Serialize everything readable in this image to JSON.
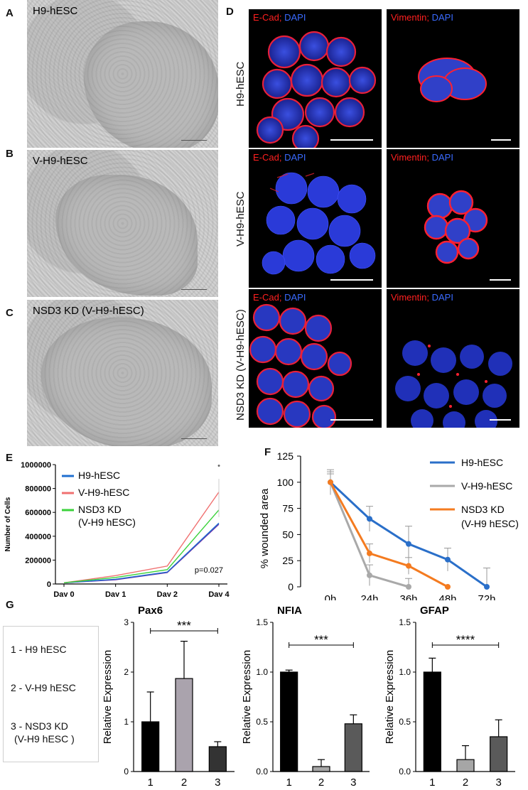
{
  "panels": {
    "A": {
      "letter": "A",
      "label": "H9-hESC"
    },
    "B": {
      "letter": "B",
      "label": "V-H9-hESC"
    },
    "C": {
      "letter": "C",
      "label": "NSD3 KD (V-H9-hESC)"
    },
    "D": {
      "letter": "D",
      "rows": [
        "H9-hESC",
        "V-H9-hESC",
        "NSD3 KD (V-H9-hESC)"
      ],
      "stain1_red": "E-Cad;",
      "stain2_red": "Vimentin;",
      "stain_blue": "DAPI"
    },
    "E": {
      "letter": "E"
    },
    "F": {
      "letter": "F"
    },
    "G": {
      "letter": "G",
      "legend": [
        "1 - H9 hESC",
        "2 - V-H9 hESC",
        "3 - NSD3 KD",
        "(V-H9 hESC )"
      ]
    }
  },
  "chart_data": [
    {
      "id": "E",
      "type": "line",
      "ylabel": "Number of Cells",
      "categories": [
        "Day 0",
        "Day 1",
        "Day 2",
        "Day 4"
      ],
      "yticks": [
        "0",
        "200000",
        "400000",
        "600000",
        "800000",
        "1000000"
      ],
      "ylim": [
        0,
        1000000
      ],
      "annotation": "p=0.027",
      "outlier_marker": "•",
      "series": [
        {
          "name": "H9-hESC",
          "color": "#1f6fd0",
          "values": [
            10000,
            40000,
            100000,
            510000
          ]
        },
        {
          "name": "V-H9-hESC",
          "color": "#f07070",
          "values": [
            10000,
            70000,
            150000,
            770000
          ]
        },
        {
          "name": "NSD3 KD",
          "name2": "(V-H9 hESC)",
          "color": "#3bd23b",
          "values": [
            10000,
            55000,
            120000,
            620000
          ]
        }
      ],
      "extra_series_color": "#6a2ca8",
      "extra_series_values": [
        10000,
        35000,
        95000,
        500000
      ],
      "legend_colors": [
        "#1f6fd0",
        "#f07070",
        "#3bd23b"
      ]
    },
    {
      "id": "F",
      "type": "line",
      "ylabel": "% wounded area",
      "categories": [
        "0h",
        "24h",
        "36h",
        "48h",
        "72h"
      ],
      "yticks": [
        "0",
        "25",
        "50",
        "75",
        "100",
        "125"
      ],
      "ylim": [
        0,
        125
      ],
      "series": [
        {
          "name": "H9-hESC",
          "color": "#2a6fc9",
          "x": [
            "0h",
            "24h",
            "36h",
            "48h",
            "72h"
          ],
          "values": [
            100,
            65,
            41,
            26,
            0
          ],
          "err": [
            12,
            12,
            17,
            11,
            18
          ]
        },
        {
          "name": "V-H9-hESC",
          "color": "#a9a9a9",
          "x": [
            "0h",
            "24h",
            "36h"
          ],
          "values": [
            100,
            11,
            0
          ],
          "err": [
            8,
            10,
            8
          ]
        },
        {
          "name": "NSD3 KD",
          "name2": "(V-H9 hESC)",
          "color": "#f47b20",
          "x": [
            "0h",
            "24h",
            "36h",
            "48h"
          ],
          "values": [
            100,
            32,
            20,
            0
          ],
          "err": [
            10,
            9,
            8,
            0
          ]
        }
      ]
    },
    {
      "id": "G1",
      "type": "bar",
      "title": "Pax6",
      "ylabel": "Relative Expression",
      "categories": [
        "1",
        "2",
        "3"
      ],
      "values": [
        1.0,
        1.87,
        0.5
      ],
      "err": [
        0.6,
        0.75,
        0.1
      ],
      "colors": [
        "#000000",
        "#aaa3ad",
        "#333333"
      ],
      "yticks": [
        "0",
        "1",
        "2",
        "3"
      ],
      "ylim": [
        0,
        3
      ],
      "sig": "***"
    },
    {
      "id": "G2",
      "type": "bar",
      "title": "NFIA",
      "ylabel": "Relative Expression",
      "categories": [
        "1",
        "2",
        "3"
      ],
      "values": [
        1.0,
        0.05,
        0.48
      ],
      "err": [
        0.02,
        0.07,
        0.09
      ],
      "colors": [
        "#000000",
        "#a6a6a6",
        "#5a5a5a"
      ],
      "yticks": [
        "0.0",
        "0.5",
        "1.0",
        "1.5"
      ],
      "ylim": [
        0,
        1.5
      ],
      "sig": "***"
    },
    {
      "id": "G3",
      "type": "bar",
      "title": "GFAP",
      "ylabel": "Relative Expression",
      "categories": [
        "1",
        "2",
        "3"
      ],
      "values": [
        1.0,
        0.12,
        0.35
      ],
      "err": [
        0.14,
        0.14,
        0.17
      ],
      "colors": [
        "#000000",
        "#a6a6a6",
        "#5a5a5a"
      ],
      "yticks": [
        "0.0",
        "0.5",
        "1.0",
        "1.5"
      ],
      "ylim": [
        0,
        1.5
      ],
      "sig": "****"
    }
  ]
}
